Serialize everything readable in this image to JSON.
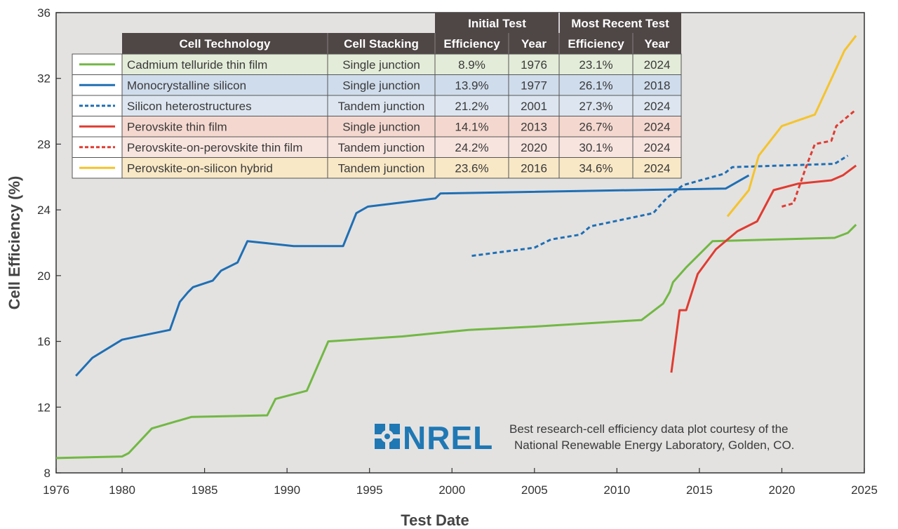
{
  "chart_data": {
    "type": "line",
    "xlabel": "Test Date",
    "ylabel": "Cell Efficiency (%)",
    "xlim": [
      1976,
      2025
    ],
    "ylim": [
      8,
      36
    ],
    "x_ticks": [
      1976,
      1980,
      1985,
      1990,
      1995,
      2000,
      2005,
      2010,
      2015,
      2020,
      2025
    ],
    "y_ticks": [
      8,
      12,
      16,
      20,
      24,
      28,
      32,
      36
    ],
    "grid": false,
    "legend": "table top-left",
    "series": [
      {
        "name": "Cadmium telluride thin film",
        "color": "#72b843",
        "dash": "solid",
        "points": [
          [
            1976,
            8.9
          ],
          [
            1980,
            9.0
          ],
          [
            1980.4,
            9.2
          ],
          [
            1981.8,
            10.7
          ],
          [
            1984.2,
            11.4
          ],
          [
            1988.8,
            11.5
          ],
          [
            1989.3,
            12.5
          ],
          [
            1991.2,
            13.0
          ],
          [
            1992.5,
            16.0
          ],
          [
            1997,
            16.3
          ],
          [
            2001,
            16.7
          ],
          [
            2005,
            16.9
          ],
          [
            2011.5,
            17.3
          ],
          [
            2012.8,
            18.3
          ],
          [
            2013.2,
            19.0
          ],
          [
            2013.4,
            19.6
          ],
          [
            2014.2,
            20.5
          ],
          [
            2015.8,
            22.1
          ],
          [
            2023.2,
            22.3
          ],
          [
            2024,
            22.6
          ],
          [
            2024.5,
            23.1
          ]
        ]
      },
      {
        "name": "Monocrystalline silicon",
        "color": "#1f6fb4",
        "dash": "solid",
        "points": [
          [
            1977.2,
            13.9
          ],
          [
            1978.2,
            15.0
          ],
          [
            1980,
            16.1
          ],
          [
            1982.9,
            16.7
          ],
          [
            1983.5,
            18.4
          ],
          [
            1984,
            19.0
          ],
          [
            1984.3,
            19.3
          ],
          [
            1985.5,
            19.7
          ],
          [
            1986,
            20.3
          ],
          [
            1986.6,
            20.6
          ],
          [
            1987,
            20.8
          ],
          [
            1987.6,
            22.1
          ],
          [
            1990.4,
            21.8
          ],
          [
            1993.4,
            21.8
          ],
          [
            1994.2,
            23.8
          ],
          [
            1994.9,
            24.2
          ],
          [
            1999,
            24.7
          ],
          [
            1999.3,
            25.0
          ],
          [
            2016.6,
            25.3
          ],
          [
            2018,
            26.1
          ]
        ]
      },
      {
        "name": "Silicon heterostructures",
        "color": "#1f6fb4",
        "dash": "dotted",
        "points": [
          [
            2001.2,
            21.2
          ],
          [
            2005,
            21.7
          ],
          [
            2006,
            22.2
          ],
          [
            2007.8,
            22.5
          ],
          [
            2008.4,
            23.0
          ],
          [
            2012.2,
            23.8
          ],
          [
            2013,
            24.7
          ],
          [
            2014,
            25.5
          ],
          [
            2016.5,
            26.2
          ],
          [
            2017,
            26.6
          ],
          [
            2023.2,
            26.8
          ],
          [
            2024,
            27.3
          ]
        ]
      },
      {
        "name": "Perovskite thin film",
        "color": "#e03c31",
        "dash": "solid",
        "points": [
          [
            2013.3,
            14.1
          ],
          [
            2013.8,
            17.9
          ],
          [
            2014.2,
            17.9
          ],
          [
            2014.9,
            20.1
          ],
          [
            2016,
            21.6
          ],
          [
            2017.3,
            22.7
          ],
          [
            2018.5,
            23.3
          ],
          [
            2019.5,
            25.2
          ],
          [
            2021,
            25.6
          ],
          [
            2023,
            25.8
          ],
          [
            2023.7,
            26.1
          ],
          [
            2024.5,
            26.7
          ]
        ]
      },
      {
        "name": "Perovskite-on-perovskite thin film",
        "color": "#e03c31",
        "dash": "dotted",
        "points": [
          [
            2020,
            24.2
          ],
          [
            2020.7,
            24.4
          ],
          [
            2021.5,
            26.7
          ],
          [
            2022,
            28.0
          ],
          [
            2023,
            28.2
          ],
          [
            2023.3,
            29.1
          ],
          [
            2024.5,
            30.1
          ]
        ]
      },
      {
        "name": "Perovskite-on-silicon hybrid",
        "color": "#f5c32c",
        "dash": "solid",
        "points": [
          [
            2016.7,
            23.6
          ],
          [
            2018,
            25.2
          ],
          [
            2018.6,
            27.3
          ],
          [
            2020,
            29.1
          ],
          [
            2022,
            29.8
          ],
          [
            2023.8,
            33.7
          ],
          [
            2024.5,
            34.6
          ]
        ]
      }
    ]
  },
  "table": {
    "group_headers": [
      "Initial Test",
      "Most Recent Test"
    ],
    "columns": [
      "Cell Technology",
      "Cell Stacking",
      "Efficiency",
      "Year",
      "Efficiency",
      "Year"
    ],
    "rows": [
      {
        "technology": "Cadmium telluride thin film",
        "stacking": "Single junction",
        "initial_eff": "8.9%",
        "initial_year": "1976",
        "recent_eff": "23.1%",
        "recent_year": "2024",
        "bg": "#e3ecd8"
      },
      {
        "technology": "Monocrystalline silicon",
        "stacking": "Single junction",
        "initial_eff": "13.9%",
        "initial_year": "1977",
        "recent_eff": "26.1%",
        "recent_year": "2018",
        "bg": "#cfdcec"
      },
      {
        "technology": "Silicon heterostructures",
        "stacking": "Tandem junction",
        "initial_eff": "21.2%",
        "initial_year": "2001",
        "recent_eff": "27.3%",
        "recent_year": "2024",
        "bg": "#dde6f0"
      },
      {
        "technology": "Perovskite thin film",
        "stacking": "Single junction",
        "initial_eff": "14.1%",
        "initial_year": "2013",
        "recent_eff": "26.7%",
        "recent_year": "2024",
        "bg": "#f4d8cf"
      },
      {
        "technology": "Perovskite-on-perovskite thin film",
        "stacking": "Tandem junction",
        "initial_eff": "24.2%",
        "initial_year": "2020",
        "recent_eff": "30.1%",
        "recent_year": "2024",
        "bg": "#f7e4de"
      },
      {
        "technology": "Perovskite-on-silicon hybrid",
        "stacking": "Tandem junction",
        "initial_eff": "23.6%",
        "initial_year": "2016",
        "recent_eff": "34.6%",
        "recent_year": "2024",
        "bg": "#f8e8c6"
      }
    ]
  },
  "logo": {
    "word": "NREL",
    "icon": "nrel-logo-icon",
    "color": "#1f78b4"
  },
  "credit": {
    "line1": "Best research-cell efficiency data plot courtesy of the",
    "line2": "National Renewable Energy Laboratory, Golden, CO."
  },
  "colors": {
    "plot_bg": "#e3e2e1",
    "table_header": "#4f4646",
    "axis": "#333333"
  }
}
